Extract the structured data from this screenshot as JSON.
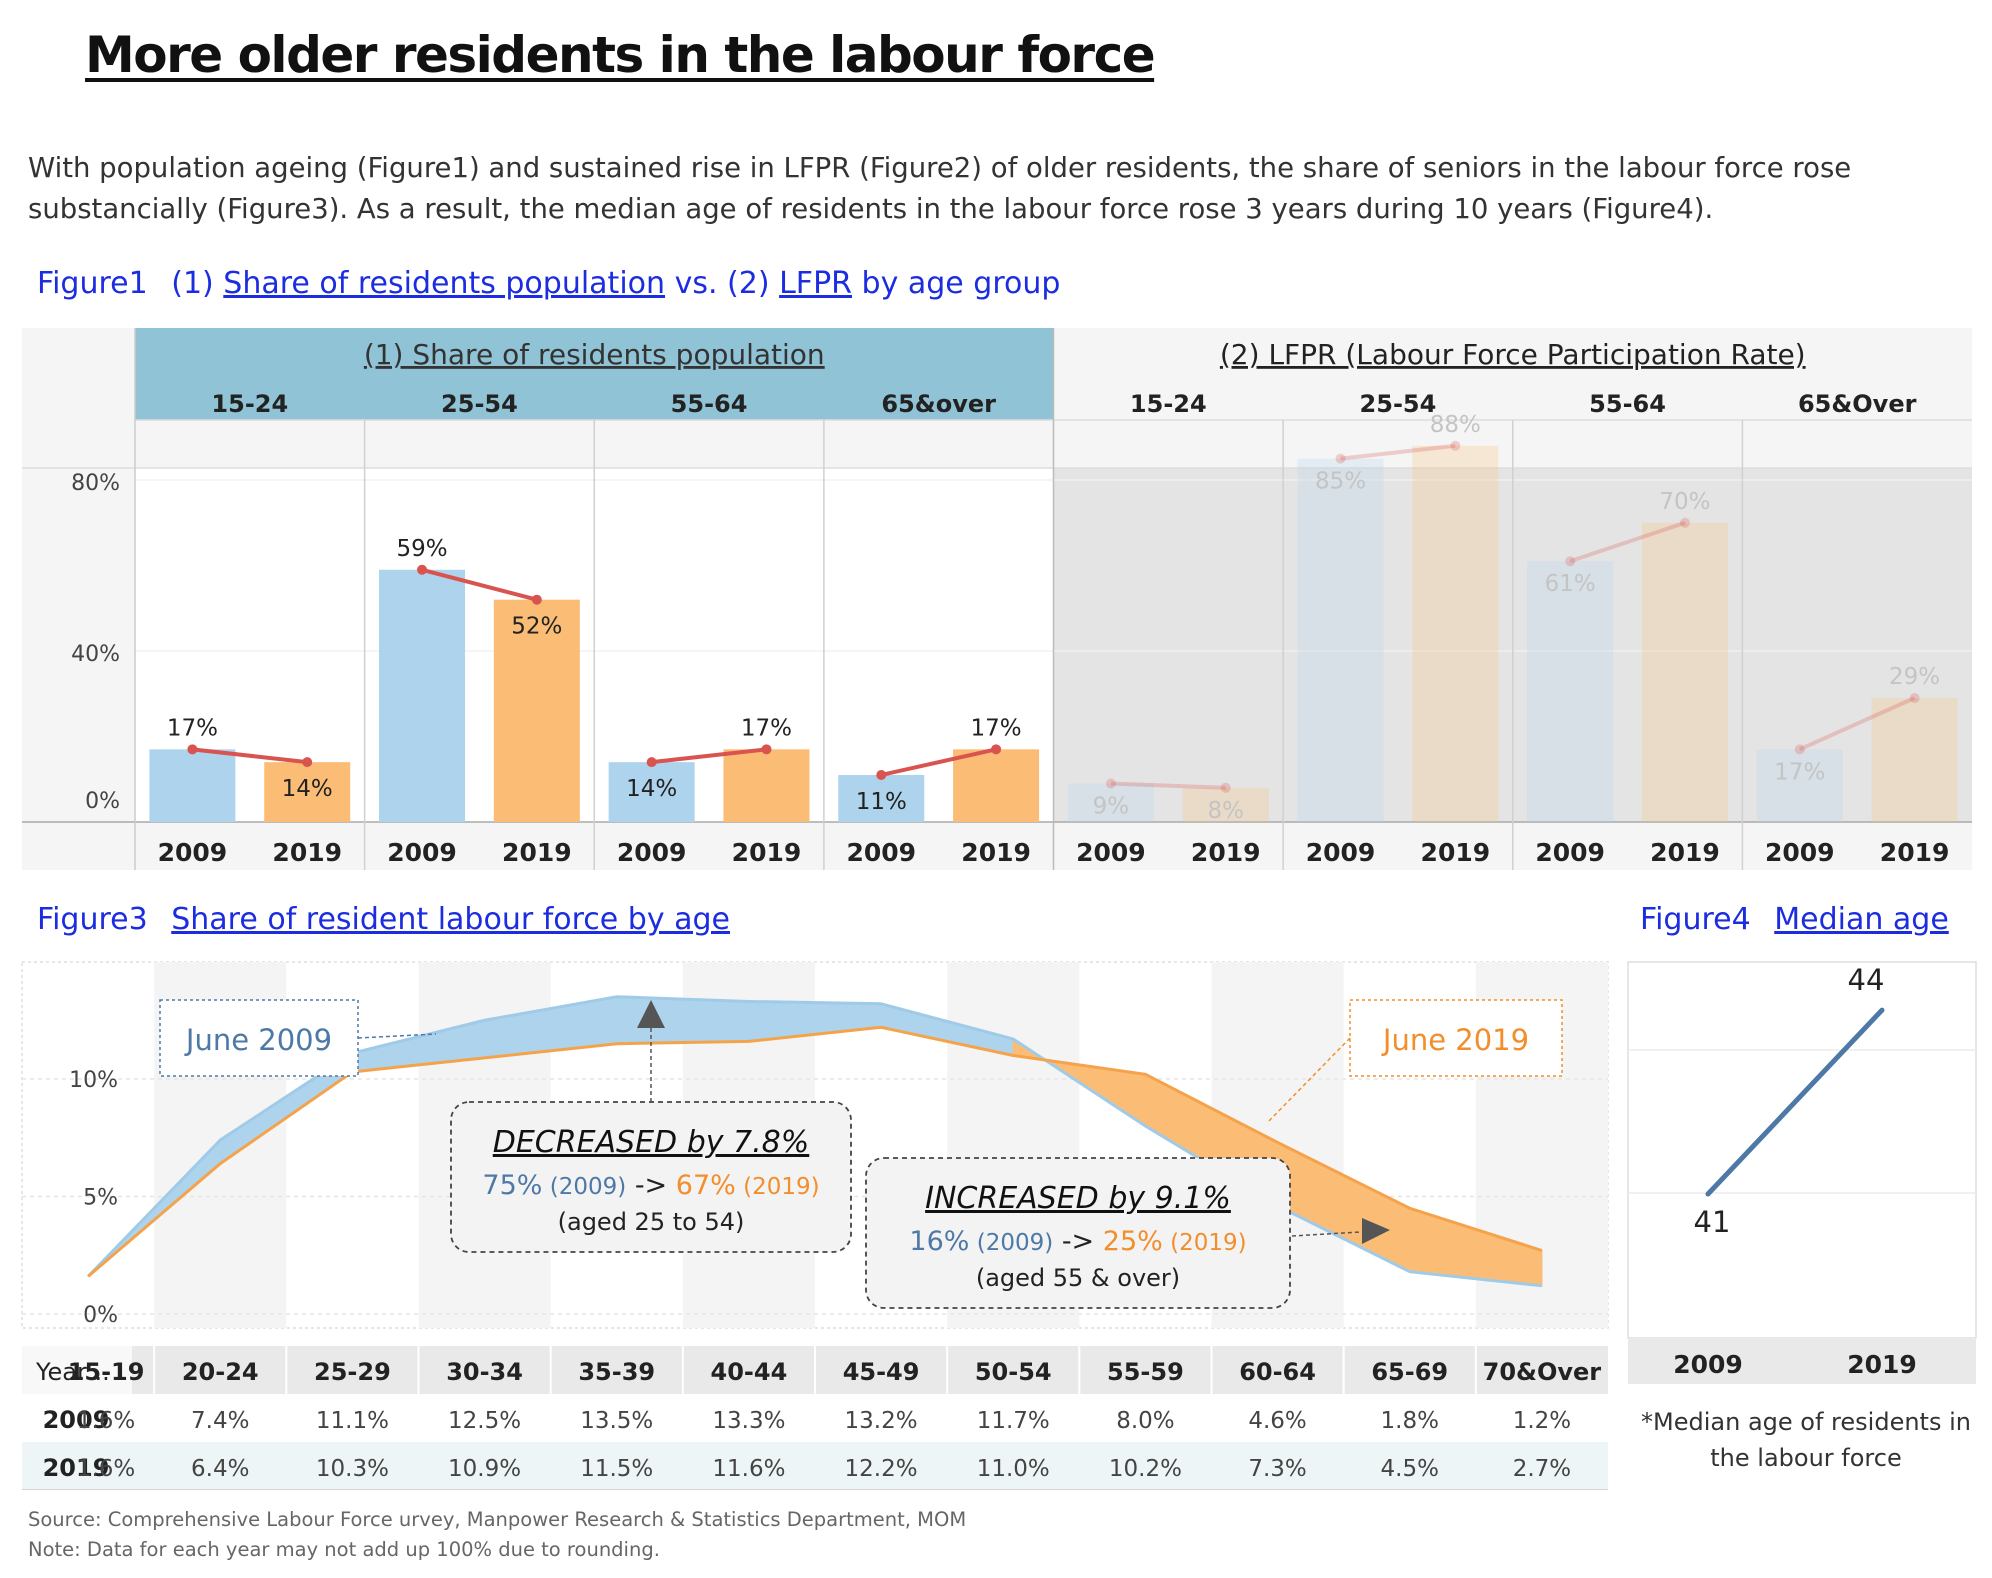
{
  "title": "More older residents in the labour force",
  "intro": "With population ageing (Figure1) and sustained rise in LFPR (Figure2) of older residents, the share of seniors in the labour force rose substancially (Figure3). As a result, the median age of residents in the labour force rose 3 years during 10 years (Figure4).",
  "figure1_title": {
    "prefix": "Figure1",
    "part1_num": "(1)",
    "part1_link": "Share of residents population",
    "vs": "vs.",
    "part2_num": "(2)",
    "part2_link": "LFPR",
    "suffix": "by age group"
  },
  "figure3_title": {
    "prefix": "Figure3",
    "link": "Share of resident labour force by age"
  },
  "figure4_title": {
    "prefix": "Figure4",
    "link": "Median age"
  },
  "source": "Source: Comprehensive Labour Force urvey, Manpower Research & Statistics Department, MOM",
  "note": "Note: Data for each year may not add up 100% due to rounding.",
  "median_note": "*Median age of residents in the labour force",
  "colors": {
    "c2009": "#aed3ec",
    "c2019": "#fbbd75",
    "trend": "#d9534f",
    "header_teal": "#8fc3d5",
    "text_blue": "#4e79a7",
    "text_orange": "#f28e2b",
    "median_line": "#4e79a7"
  },
  "chart_data": [
    {
      "type": "bar",
      "panel": "(1) Share of residents population",
      "groups": [
        "15-24",
        "25-54",
        "55-64",
        "65&over"
      ],
      "categories": [
        "2009",
        "2019"
      ],
      "series": [
        {
          "name": "2009",
          "values": [
            17,
            59,
            14,
            11
          ]
        },
        {
          "name": "2019",
          "values": [
            14,
            52,
            17,
            17
          ]
        }
      ],
      "labels": [
        [
          "17%",
          "14%"
        ],
        [
          "59%",
          "52%"
        ],
        [
          "14%",
          "17%"
        ],
        [
          "11%",
          "17%"
        ]
      ],
      "y_ticks": [
        "0%",
        "40%",
        "80%"
      ],
      "ylim": [
        0,
        88
      ]
    },
    {
      "type": "bar",
      "panel": "(2) LFPR (Labour Force Participation Rate)",
      "groups": [
        "15-24",
        "25-54",
        "55-64",
        "65&Over"
      ],
      "categories": [
        "2009",
        "2019"
      ],
      "series": [
        {
          "name": "2009",
          "values": [
            9,
            85,
            61,
            17
          ]
        },
        {
          "name": "2019",
          "values": [
            8,
            88,
            70,
            29
          ]
        }
      ],
      "labels": [
        [
          "9%",
          "8%"
        ],
        [
          "85%",
          "88%"
        ],
        [
          "61%",
          "70%"
        ],
        [
          "17%",
          "29%"
        ]
      ],
      "ylim": [
        0,
        88
      ]
    },
    {
      "type": "area",
      "categories": [
        "15-19",
        "20-24",
        "25-29",
        "30-34",
        "35-39",
        "40-44",
        "45-49",
        "50-54",
        "55-59",
        "60-64",
        "65-69",
        "70&Over"
      ],
      "series": [
        {
          "name": "June 2009",
          "values": [
            1.6,
            7.4,
            11.1,
            12.5,
            13.5,
            13.3,
            13.2,
            11.7,
            8.0,
            4.6,
            1.8,
            1.2
          ],
          "labels": [
            "1.6%",
            "7.4%",
            "11.1%",
            "12.5%",
            "13.5%",
            "13.3%",
            "13.2%",
            "11.7%",
            "8.0%",
            "4.6%",
            "1.8%",
            "1.2%"
          ]
        },
        {
          "name": "June 2019",
          "values": [
            1.6,
            6.4,
            10.3,
            10.9,
            11.5,
            11.6,
            12.2,
            11.0,
            10.2,
            7.3,
            4.5,
            2.7
          ],
          "labels": [
            "1.6%",
            "6.4%",
            "10.3%",
            "10.9%",
            "11.5%",
            "11.6%",
            "12.2%",
            "11.0%",
            "10.2%",
            "7.3%",
            "4.5%",
            "2.7%"
          ]
        }
      ],
      "table_header": "Year ..",
      "row_labels": [
        "2009",
        "2019"
      ],
      "y_ticks": [
        {
          "label": "0%",
          "value": 0
        },
        {
          "label": "5%",
          "value": 5
        },
        {
          "label": "10%",
          "value": 10
        }
      ],
      "ylim": [
        0,
        14
      ],
      "annotations": {
        "decreased": {
          "title": "DECREASED by 7.8%",
          "from": "75%",
          "from_year": "(2009)",
          "arrow": "->",
          "to": "67%",
          "to_year": "(2019)",
          "sub": "(aged 25 to 54)"
        },
        "increased": {
          "title": "INCREASED by 9.1%",
          "from": "16%",
          "from_year": "(2009)",
          "arrow": "->",
          "to": "25%",
          "to_year": "(2019)",
          "sub": "(aged 55 & over)"
        }
      }
    },
    {
      "type": "line",
      "categories": [
        "2009",
        "2019"
      ],
      "series": [
        {
          "values": [
            41,
            44
          ]
        }
      ],
      "labels": [
        "41",
        "44"
      ],
      "ylim": [
        38.6,
        46
      ]
    }
  ]
}
